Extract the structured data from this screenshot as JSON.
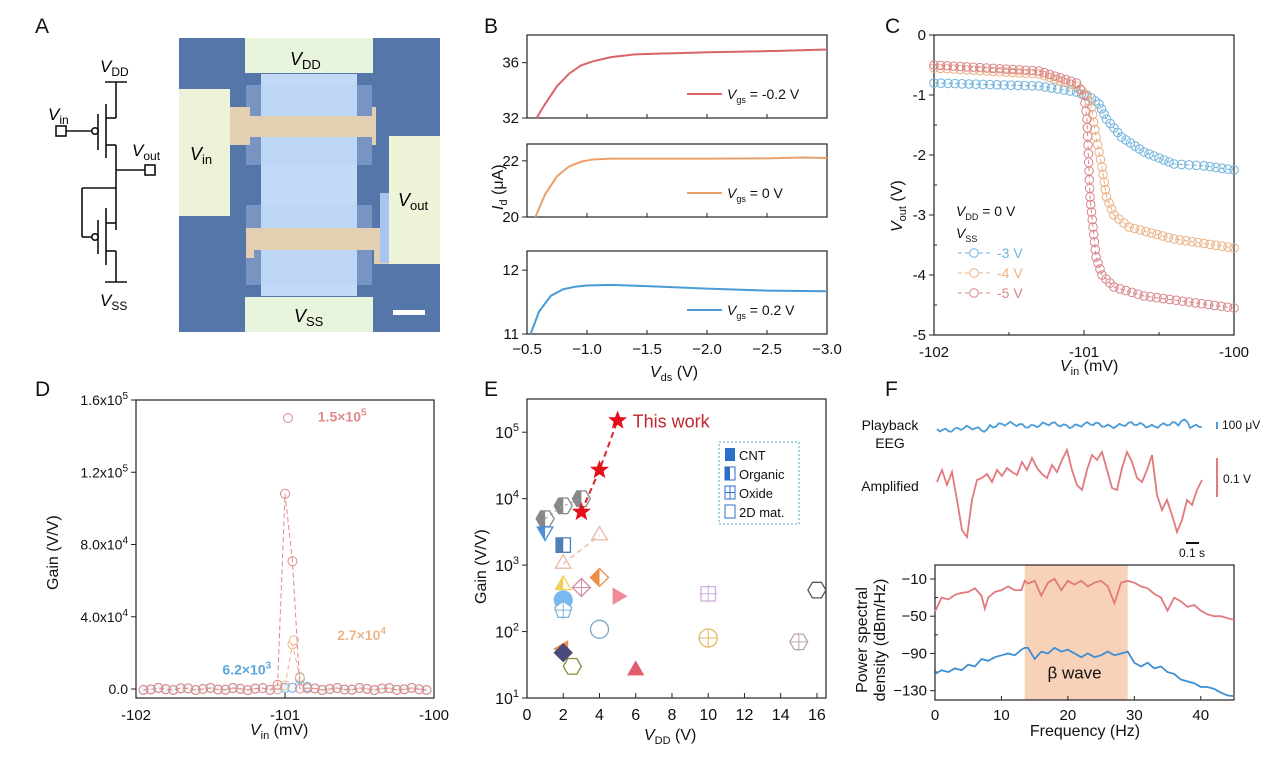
{
  "panels": {
    "A": "A",
    "B": "B",
    "C": "C",
    "D": "D",
    "E": "E",
    "F": "F"
  },
  "colors": {
    "red": "#d9656b",
    "orange": "#e8a06a",
    "blue": "#4a9bd6",
    "star": "#e3101a",
    "psd_red": "#e07a7e",
    "psd_blue": "#3f8fd0",
    "beta_band": "#f8d2b8",
    "device_bg": "#5576a8"
  },
  "panel_a": {
    "circuit_labels": {
      "vdd": "V",
      "vdd_sub": "DD",
      "vin": "V",
      "vin_sub": "in",
      "vout": "V",
      "vout_sub": "out",
      "vss": "V",
      "vss_sub": "SS"
    },
    "micrograph_labels": {
      "vdd": "V",
      "vdd_sub": "DD",
      "vin": "V",
      "vin_sub": "in",
      "vout": "V",
      "vout_sub": "out",
      "vss": "V",
      "vss_sub": "SS"
    },
    "scale_bar": "scale bar"
  },
  "chart_data": [
    {
      "id": "B",
      "type": "line",
      "xlabel": "V",
      "xlabel_sub": "ds",
      "xlabel_unit": " (V)",
      "ylabel": "I",
      "ylabel_sub": "d",
      "ylabel_unit": " (μA)",
      "xlim": [
        -0.5,
        -3.0
      ],
      "xticks": [
        "−0.5",
        "−1.0",
        "−1.5",
        "−2.0",
        "−2.5",
        "−3.0"
      ],
      "subplots": [
        {
          "legend": "V",
          "legend_sub": "gs",
          "legend_val": " = -0.2 V",
          "color": "#d9656b",
          "ylim": [
            32,
            38
          ],
          "yticks": [
            32,
            36
          ],
          "x": [
            -0.58,
            -0.65,
            -0.75,
            -0.85,
            -0.95,
            -1.05,
            -1.2,
            -1.4,
            -1.6,
            -1.8,
            -2.0,
            -2.3,
            -2.6,
            -3.0
          ],
          "y": [
            32,
            33.0,
            34.3,
            35.2,
            35.8,
            36.1,
            36.4,
            36.6,
            36.65,
            36.7,
            36.75,
            36.8,
            36.85,
            36.95
          ]
        },
        {
          "legend": "V",
          "legend_sub": "gs",
          "legend_val": " = 0 V",
          "color": "#e8a06a",
          "ylim": [
            20,
            22.6
          ],
          "yticks": [
            20,
            22
          ],
          "x": [
            -0.57,
            -0.65,
            -0.75,
            -0.85,
            -0.95,
            -1.05,
            -1.2,
            -1.5,
            -2.0,
            -2.5,
            -2.8,
            -3.0
          ],
          "y": [
            20,
            20.8,
            21.45,
            21.8,
            21.97,
            22.05,
            22.08,
            22.08,
            22.08,
            22.09,
            22.12,
            22.1
          ]
        },
        {
          "legend": "V",
          "legend_sub": "gs",
          "legend_val": " = 0.2 V",
          "color": "#4a9bd6",
          "ylim": [
            11,
            12.3
          ],
          "yticks": [
            11,
            12
          ],
          "x": [
            -0.53,
            -0.6,
            -0.7,
            -0.8,
            -0.9,
            -1.0,
            -1.2,
            -1.5,
            -2.0,
            -2.5,
            -3.0
          ],
          "y": [
            11,
            11.35,
            11.6,
            11.7,
            11.74,
            11.76,
            11.77,
            11.75,
            11.71,
            11.68,
            11.67
          ]
        }
      ]
    },
    {
      "id": "C",
      "type": "scatter",
      "xlabel": "V",
      "xlabel_sub": "in",
      "xlabel_unit": " (mV)",
      "ylabel": "V",
      "ylabel_sub": "out",
      "ylabel_unit": " (V)",
      "xlim": [
        -102,
        -100
      ],
      "ylim": [
        -5,
        0
      ],
      "xticks": [
        -102,
        -101,
        -100
      ],
      "yticks": [
        0,
        -1,
        -2,
        -3,
        -4,
        -5
      ],
      "legend_title": "V",
      "legend_title_sub": "DD",
      "legend_title_val": " = 0 V",
      "legend_sub_title": "V",
      "legend_sub_title_sub": "SS",
      "series": [
        {
          "name": "-3 V",
          "color": "#6fb3dc",
          "x": [
            -102,
            -101.3,
            -101.05,
            -100.95,
            -100.9,
            -100.85,
            -100.75,
            -100.6,
            -100.4,
            -100.2,
            -100
          ],
          "y": [
            -0.8,
            -0.85,
            -0.95,
            -1.05,
            -1.15,
            -1.4,
            -1.7,
            -1.95,
            -2.15,
            -2.18,
            -2.25
          ]
        },
        {
          "name": "-4 V",
          "color": "#eab184",
          "x": [
            -102,
            -101.3,
            -101.05,
            -100.98,
            -100.95,
            -100.92,
            -100.88,
            -100.85,
            -100.8,
            -100.7,
            -100.4,
            -100
          ],
          "y": [
            -0.55,
            -0.65,
            -0.85,
            -1.0,
            -1.2,
            -1.7,
            -2.2,
            -2.7,
            -3.0,
            -3.2,
            -3.4,
            -3.55
          ]
        },
        {
          "name": "-5 V",
          "color": "#d9848a",
          "x": [
            -102,
            -101.3,
            -101.05,
            -101.0,
            -100.98,
            -100.96,
            -100.94,
            -100.92,
            -100.88,
            -100.8,
            -100.6,
            -100.3,
            -100
          ],
          "y": [
            -0.5,
            -0.6,
            -0.8,
            -1.0,
            -1.4,
            -2.7,
            -3.2,
            -3.7,
            -4.0,
            -4.2,
            -4.35,
            -4.45,
            -4.55
          ]
        }
      ]
    },
    {
      "id": "D",
      "type": "scatter",
      "xlabel": "V",
      "xlabel_sub": "in",
      "xlabel_unit": " (mV)",
      "ylabel": "Gain (V/V)",
      "xlim": [
        -102,
        -100
      ],
      "ylim": [
        -5000,
        160000
      ],
      "xticks": [
        -102,
        -101,
        -100
      ],
      "yticks": [
        0,
        40000,
        80000,
        120000,
        160000
      ],
      "yticklabels": [
        "0.0",
        "4.0x10",
        "8.0x10",
        "1.2x10",
        "1.6x10"
      ],
      "ytickexp": [
        "",
        "4",
        "4",
        "5",
        "5"
      ],
      "annotations": [
        {
          "text": "1.5×10",
          "exp": "5",
          "color": "#e08a8c",
          "x": -100.78,
          "y": 148000
        },
        {
          "text": "2.7×10",
          "exp": "4",
          "color": "#eeb58a",
          "x": -100.65,
          "y": 27000
        },
        {
          "text": "6.2×10",
          "exp": "3",
          "color": "#5aa5dd",
          "x": -101.42,
          "y": 8000
        }
      ],
      "series": [
        {
          "name": "-5 V",
          "color": "#e08a8c",
          "peak_x": -100.98,
          "peak": 150000
        },
        {
          "name": "-4 V",
          "color": "#eeb58a",
          "peak_x": -100.94,
          "peak": 27000
        },
        {
          "name": "-3 V",
          "color": "#6fb3dc",
          "peak_x": -100.9,
          "peak": 6200
        }
      ]
    },
    {
      "id": "E",
      "type": "scatter",
      "xlabel": "V",
      "xlabel_sub": "DD",
      "xlabel_unit": " (V)",
      "ylabel": "Gain (V/V)",
      "xlim": [
        0,
        16.5
      ],
      "ylim_log10": [
        1,
        5.5
      ],
      "yscale": "log",
      "xticks": [
        0,
        2,
        4,
        6,
        8,
        10,
        12,
        14,
        16
      ],
      "yticks_exp": [
        1,
        2,
        3,
        4,
        5
      ],
      "this_work_label": "This work",
      "legend": [
        {
          "label": "CNT",
          "style": "filled"
        },
        {
          "label": "Organic",
          "style": "half"
        },
        {
          "label": "Oxide",
          "style": "cross"
        },
        {
          "label": "2D mat.",
          "style": "open"
        }
      ],
      "this_work": {
        "x": [
          3,
          4,
          5
        ],
        "y": [
          6300,
          27000,
          150000
        ]
      },
      "points": [
        {
          "x": 1,
          "y": 5000,
          "shape": "hexagon",
          "style": "half",
          "color": "#888888"
        },
        {
          "x": 2,
          "y": 7800,
          "shape": "hexagon",
          "style": "half",
          "color": "#888888"
        },
        {
          "x": 3,
          "y": 10000,
          "shape": "hexagon",
          "style": "half",
          "color": "#888888"
        },
        {
          "x": 1,
          "y": 3200,
          "shape": "tri-down",
          "style": "half",
          "color": "#4a8fd6"
        },
        {
          "x": 2,
          "y": 2000,
          "shape": "square",
          "style": "half",
          "color": "#4f7fb8"
        },
        {
          "x": 2,
          "y": 1050,
          "shape": "triangle",
          "style": "open",
          "color": "#e7b9a6"
        },
        {
          "x": 4,
          "y": 2800,
          "shape": "triangle",
          "style": "open",
          "color": "#e7b9a6"
        },
        {
          "x": 2,
          "y": 500,
          "shape": "triangle",
          "style": "half",
          "color": "#f2cf5a"
        },
        {
          "x": 3,
          "y": 460,
          "shape": "diamond",
          "style": "cross",
          "color": "#d08c9c"
        },
        {
          "x": 4,
          "y": 650,
          "shape": "diamond",
          "style": "half",
          "color": "#ec8e46"
        },
        {
          "x": 5,
          "y": 340,
          "shape": "tri-right",
          "style": "filled",
          "color": "#f08a9a"
        },
        {
          "x": 2,
          "y": 300,
          "shape": "circle",
          "style": "filled",
          "color": "#79b8f0"
        },
        {
          "x": 2,
          "y": 210,
          "shape": "pentagon",
          "style": "cross",
          "color": "#7fb4dc"
        },
        {
          "x": 4,
          "y": 108,
          "shape": "circle",
          "style": "open",
          "color": "#7aa6c8"
        },
        {
          "x": 10,
          "y": 370,
          "shape": "square",
          "style": "cross",
          "color": "#cfaee0"
        },
        {
          "x": 16,
          "y": 420,
          "shape": "hexagon",
          "style": "open",
          "color": "#555555"
        },
        {
          "x": 10,
          "y": 80,
          "shape": "circle",
          "style": "cross",
          "color": "#e2b865"
        },
        {
          "x": 15,
          "y": 70,
          "shape": "hexagon",
          "style": "cross",
          "color": "#b8a6a8"
        },
        {
          "x": 2,
          "y": 55,
          "shape": "tri-left",
          "style": "filled",
          "color": "#ec8e46"
        },
        {
          "x": 2,
          "y": 48,
          "shape": "diamond",
          "style": "filled",
          "color": "#4a4a7a"
        },
        {
          "x": 2.5,
          "y": 30,
          "shape": "hexagon",
          "style": "open",
          "color": "#8a8a3a"
        },
        {
          "x": 6,
          "y": 26,
          "shape": "triangle",
          "style": "filled",
          "color": "#e45d6a"
        }
      ]
    },
    {
      "id": "F",
      "type": "line",
      "trace_labels": {
        "playback": "Playback",
        "playback2": "EEG",
        "amplified": "Amplified"
      },
      "scale_bars": {
        "playback": "100 μV",
        "amplified": "0.1 V",
        "time": "0.1 s"
      },
      "psd": {
        "xlabel": "Frequency (Hz)",
        "ylabel_1": "Power spectral",
        "ylabel_2": "density (dBm/Hz)",
        "xlim": [
          0,
          45
        ],
        "ylim": [
          -140,
          5
        ],
        "xticks": [
          0,
          10,
          20,
          30,
          40
        ],
        "yticks": [
          -10,
          -50,
          -90,
          -130
        ],
        "band_label": "β wave",
        "band": [
          13.5,
          29
        ],
        "series": [
          {
            "name": "Amplified",
            "color": "#e07a7e",
            "x": [
              0,
              1,
              2,
              3,
              4,
              5,
              6,
              7,
              7.5,
              8,
              9,
              10,
              11,
              12,
              13,
              13.5,
              14,
              15,
              16,
              17,
              18,
              19,
              20,
              21,
              22,
              23,
              24,
              25,
              26,
              27,
              28,
              29,
              30,
              31,
              32,
              33,
              34,
              35,
              36,
              37,
              38,
              39,
              40,
              41,
              42,
              43,
              44,
              45
            ],
            "y": [
              -45,
              -30,
              -32,
              -27,
              -25,
              -24,
              -20,
              -28,
              -42,
              -30,
              -24,
              -22,
              -18,
              -22,
              -22,
              -12,
              -15,
              -12,
              -28,
              -14,
              -10,
              -22,
              -12,
              -16,
              -12,
              -18,
              -14,
              -12,
              -18,
              -36,
              -14,
              -12,
              -14,
              -18,
              -20,
              -26,
              -30,
              -44,
              -30,
              -34,
              -40,
              -38,
              -44,
              -48,
              -50,
              -50,
              -52,
              -54
            ]
          },
          {
            "name": "Playback EEG",
            "color": "#3f8fd0",
            "x": [
              0,
              1,
              2,
              3,
              4,
              5,
              6,
              7,
              8,
              9,
              10,
              11,
              12,
              13,
              13.5,
              14,
              15,
              16,
              17,
              18,
              19,
              20,
              21,
              22,
              23,
              24,
              25,
              26,
              27,
              28,
              29,
              30,
              31,
              32,
              33,
              34,
              35,
              36,
              37,
              38,
              39,
              40,
              41,
              42,
              43,
              44,
              45
            ],
            "y": [
              -112,
              -108,
              -110,
              -106,
              -108,
              -102,
              -104,
              -96,
              -98,
              -94,
              -92,
              -90,
              -92,
              -86,
              -84,
              -84,
              -96,
              -88,
              -90,
              -84,
              -88,
              -86,
              -90,
              -94,
              -90,
              -94,
              -92,
              -88,
              -92,
              -90,
              -88,
              -100,
              -104,
              -100,
              -106,
              -104,
              -110,
              -112,
              -118,
              -120,
              -122,
              -126,
              -126,
              -128,
              -132,
              -135,
              -136
            ]
          }
        ]
      }
    }
  ]
}
